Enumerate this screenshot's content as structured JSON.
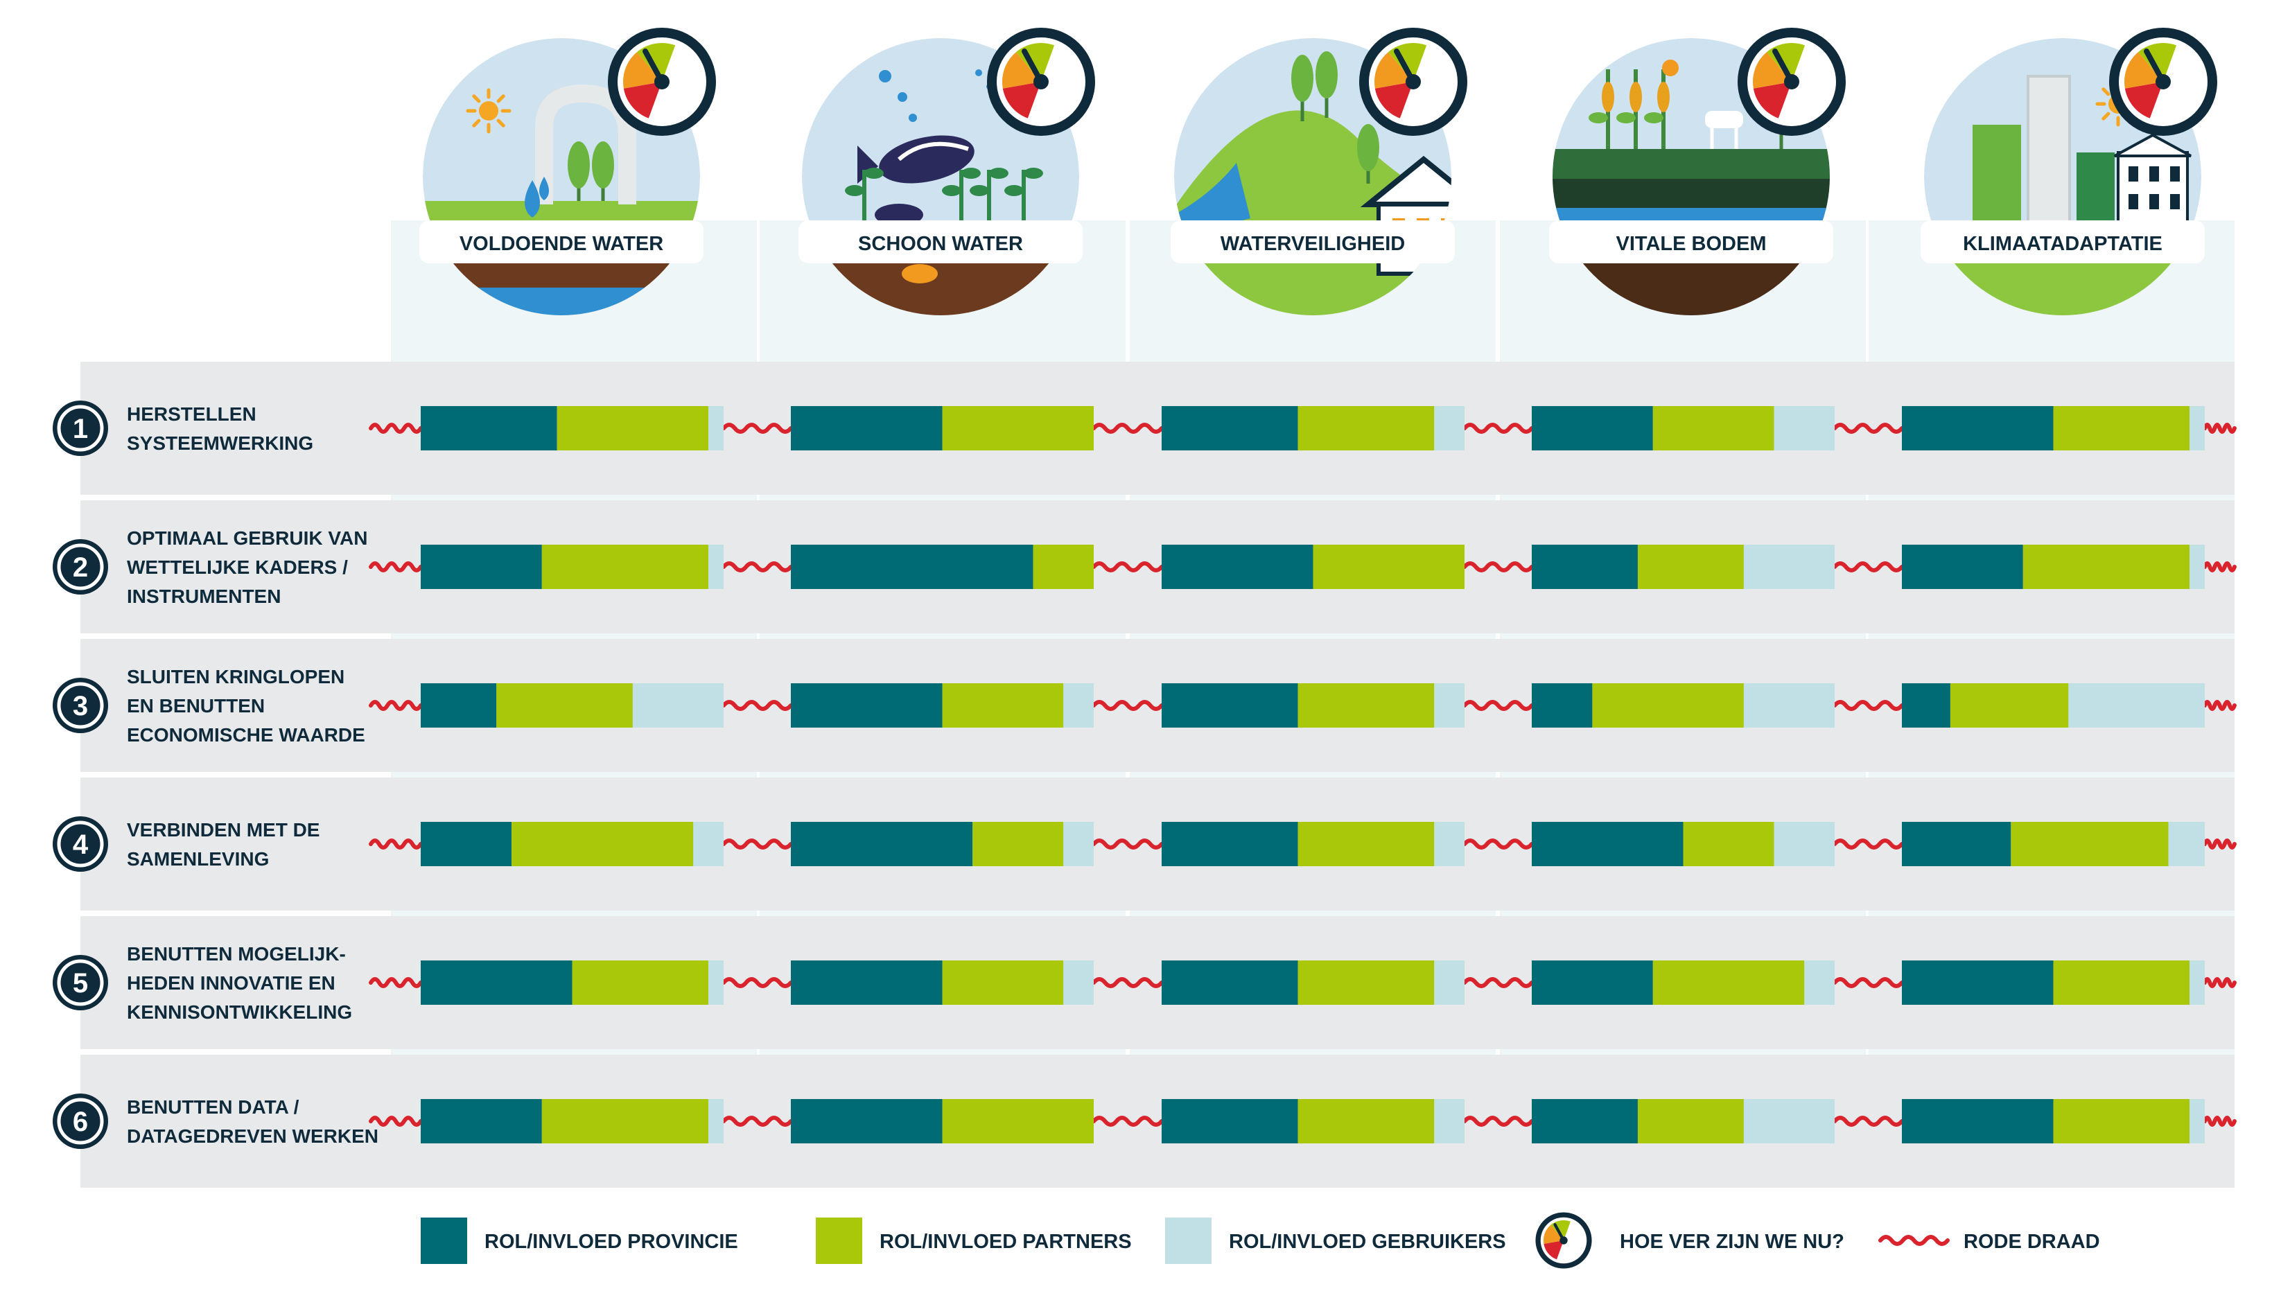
{
  "colors": {
    "provincie": "#006b74",
    "partners": "#aac80a",
    "gebruikers": "#c0e0e6",
    "navy": "#0f2a3b",
    "red_thread": "#d9232d",
    "row_bg": "#e7e9ea",
    "col_bg": "#eef6f8",
    "sky": "#cfe2f0",
    "grass": "#8dc63f"
  },
  "icons": [
    "tap-water-icon",
    "fish-icon",
    "dike-house-icon",
    "soil-crops-icon",
    "city-buildings-icon",
    "gauge-icon"
  ],
  "chart_data": {
    "type": "bar",
    "stacked": true,
    "orientation": "horizontal",
    "unit": "share of bar (fraction)",
    "themes": [
      "VOLDOENDE WATER",
      "SCHOON WATER",
      "WATERVEILIGHEID",
      "VITALE BODEM",
      "KLIMAATADAPTATIE"
    ],
    "categories": [
      [
        "HERSTELLEN",
        "SYSTEEMWERKING"
      ],
      [
        "OPTIMAAL GEBRUIK VAN",
        "WETTELIJKE KADERS /",
        "INSTRUMENTEN"
      ],
      [
        "SLUITEN KRINGLOPEN",
        "EN BENUTTEN",
        "ECONOMISCHE WAARDE"
      ],
      [
        "VERBINDEN MET DE",
        "SAMENLEVING"
      ],
      [
        "BENUTTEN MOGELIJK-",
        "HEDEN INNOVATIE EN",
        "KENNISONTWIKKELING"
      ],
      [
        "BENUTTEN DATA /",
        "DATAGEDREVEN WERKEN"
      ]
    ],
    "numbers": [
      "1",
      "2",
      "3",
      "4",
      "5",
      "6"
    ],
    "values": [
      [
        [
          0.45,
          0.5,
          0.05
        ],
        [
          0.5,
          0.5,
          0.0
        ],
        [
          0.45,
          0.45,
          0.1
        ],
        [
          0.4,
          0.4,
          0.2
        ],
        [
          0.5,
          0.45,
          0.05
        ]
      ],
      [
        [
          0.4,
          0.55,
          0.05
        ],
        [
          0.8,
          0.2,
          0.0
        ],
        [
          0.5,
          0.5,
          0.0
        ],
        [
          0.35,
          0.35,
          0.3
        ],
        [
          0.4,
          0.55,
          0.05
        ]
      ],
      [
        [
          0.25,
          0.45,
          0.3
        ],
        [
          0.5,
          0.4,
          0.1
        ],
        [
          0.45,
          0.45,
          0.1
        ],
        [
          0.2,
          0.5,
          0.3
        ],
        [
          0.16,
          0.39,
          0.45
        ]
      ],
      [
        [
          0.3,
          0.6,
          0.1
        ],
        [
          0.6,
          0.3,
          0.1
        ],
        [
          0.45,
          0.45,
          0.1
        ],
        [
          0.5,
          0.3,
          0.2
        ],
        [
          0.36,
          0.52,
          0.12
        ]
      ],
      [
        [
          0.5,
          0.45,
          0.05
        ],
        [
          0.5,
          0.4,
          0.1
        ],
        [
          0.45,
          0.45,
          0.1
        ],
        [
          0.4,
          0.5,
          0.1
        ],
        [
          0.5,
          0.45,
          0.05
        ]
      ],
      [
        [
          0.4,
          0.55,
          0.05
        ],
        [
          0.5,
          0.5,
          0.0
        ],
        [
          0.45,
          0.45,
          0.1
        ],
        [
          0.35,
          0.35,
          0.3
        ],
        [
          0.5,
          0.45,
          0.05
        ]
      ]
    ],
    "gauge_levels": [
      0.62,
      0.62,
      0.62,
      0.62,
      0.62
    ],
    "legend": [
      {
        "key": "provincie",
        "label": "ROL/INVLOED PROVINCIE"
      },
      {
        "key": "partners",
        "label": "ROL/INVLOED PARTNERS"
      },
      {
        "key": "gebruikers",
        "label": "ROL/INVLOED GEBRUIKERS"
      },
      {
        "key": "gauge",
        "label": "HOE VER ZIJN WE NU?"
      },
      {
        "key": "thread",
        "label": "RODE DRAAD"
      }
    ]
  }
}
